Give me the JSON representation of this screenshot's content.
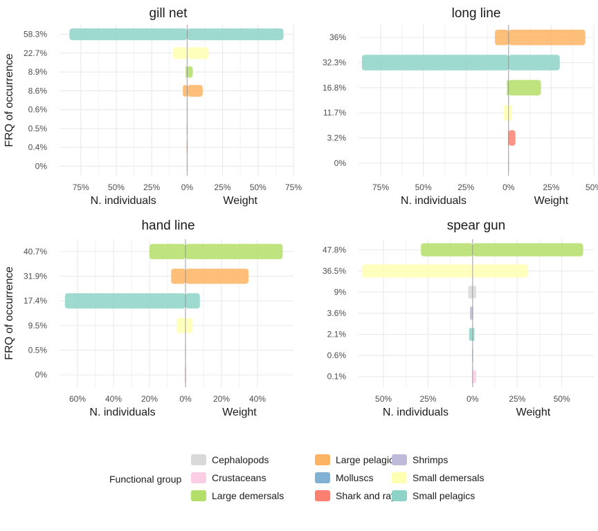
{
  "colors": {
    "Cephalopods": "#d9d9d9",
    "Crustaceans": "#fccde5",
    "Large demersals": "#b3de69",
    "Large pelagics": "#fdb462",
    "Molluscs": "#80b1d3",
    "Shark and rays": "#fb8072",
    "Shrimps": "#bebada",
    "Small demersals": "#ffffb3",
    "Small pelagics": "#8dd3c7"
  },
  "legend": {
    "title": "Functional group",
    "items": [
      "Cephalopods",
      "Crustaceans",
      "Large demersals",
      "Large pelagics",
      "Molluscs",
      "Shark and rays",
      "Shrimps",
      "Small demersals",
      "Small pelagics"
    ]
  },
  "chart_data": [
    {
      "type": "bar",
      "title": "gill net",
      "ylabel": "FRQ of occurrence",
      "xlabel_left": "N. individuals",
      "xlabel_right": "Weight",
      "xlim": [
        -0.9,
        0.75
      ],
      "xticks": [
        -0.75,
        -0.5,
        -0.25,
        0,
        0.25,
        0.5,
        0.75
      ],
      "xtick_labels": [
        "75%",
        "50%",
        "25%",
        "0%",
        "25%",
        "50%",
        "75%"
      ],
      "categories": [
        "58.3%",
        "22.7%",
        "8.9%",
        "8.6%",
        "0.6%",
        "0.5%",
        "0.4%",
        "0%"
      ],
      "series": [
        {
          "group": "Small pelagics",
          "category": "58.3%",
          "individuals": 0.83,
          "weight": 0.68
        },
        {
          "group": "Small demersals",
          "category": "22.7%",
          "individuals": 0.1,
          "weight": 0.15
        },
        {
          "group": "Large demersals",
          "category": "8.9%",
          "individuals": 0.01,
          "weight": 0.04
        },
        {
          "group": "Large pelagics",
          "category": "8.6%",
          "individuals": 0.03,
          "weight": 0.11
        },
        {
          "group": "Cephalopods",
          "category": "0.6%",
          "individuals": 0.002,
          "weight": 0.002
        },
        {
          "group": "Shrimps",
          "category": "0.5%",
          "individuals": 0.002,
          "weight": 0.002
        },
        {
          "group": "Shark and rays",
          "category": "0.4%",
          "individuals": 0.001,
          "weight": 0.002
        },
        {
          "group": "Crustaceans",
          "category": "0%",
          "individuals": 0.001,
          "weight": 0.001
        }
      ]
    },
    {
      "type": "bar",
      "title": "long line",
      "ylabel": "",
      "xlabel_left": "N. individuals",
      "xlabel_right": "Weight",
      "xlim": [
        -0.88,
        0.5
      ],
      "xticks": [
        -0.75,
        -0.5,
        -0.25,
        0,
        0.25,
        0.5
      ],
      "xtick_labels": [
        "75%",
        "50%",
        "25%",
        "0%",
        "25%",
        "50%"
      ],
      "categories": [
        "36%",
        "32.3%",
        "16.8%",
        "11.7%",
        "3.2%",
        "0%"
      ],
      "series": [
        {
          "group": "Large pelagics",
          "category": "36%",
          "individuals": 0.08,
          "weight": 0.45
        },
        {
          "group": "Small pelagics",
          "category": "32.3%",
          "individuals": 0.86,
          "weight": 0.3
        },
        {
          "group": "Large demersals",
          "category": "16.8%",
          "individuals": 0.01,
          "weight": 0.19
        },
        {
          "group": "Small demersals",
          "category": "11.7%",
          "individuals": 0.03,
          "weight": 0.02
        },
        {
          "group": "Shark and rays",
          "category": "3.2%",
          "individuals": 0.003,
          "weight": 0.04
        },
        {
          "group": "Cephalopods",
          "category": "0%",
          "individuals": 0.001,
          "weight": 0.001
        }
      ]
    },
    {
      "type": "bar",
      "title": "hand line",
      "ylabel": "FRQ of occurrence",
      "xlabel_left": "N. individuals",
      "xlabel_right": "Weight",
      "xlim": [
        -0.7,
        0.6
      ],
      "xticks": [
        -0.6,
        -0.4,
        -0.2,
        0,
        0.2,
        0.4
      ],
      "xtick_labels": [
        "60%",
        "40%",
        "20%",
        "0%",
        "20%",
        "40%"
      ],
      "categories": [
        "40.7%",
        "31.9%",
        "17.4%",
        "9.5%",
        "0.5%",
        "0%"
      ],
      "series": [
        {
          "group": "Large demersals",
          "category": "40.7%",
          "individuals": 0.2,
          "weight": 0.54
        },
        {
          "group": "Large pelagics",
          "category": "31.9%",
          "individuals": 0.08,
          "weight": 0.35
        },
        {
          "group": "Small pelagics",
          "category": "17.4%",
          "individuals": 0.67,
          "weight": 0.08
        },
        {
          "group": "Small demersals",
          "category": "9.5%",
          "individuals": 0.05,
          "weight": 0.04
        },
        {
          "group": "Cephalopods",
          "category": "0.5%",
          "individuals": 0.002,
          "weight": 0.002
        },
        {
          "group": "Shark and rays",
          "category": "0%",
          "individuals": 0.001,
          "weight": 0.002
        }
      ]
    },
    {
      "type": "bar",
      "title": "spear gun",
      "ylabel": "",
      "xlabel_left": "N. individuals",
      "xlabel_right": "Weight",
      "xlim": [
        -0.64,
        0.68
      ],
      "xticks": [
        -0.5,
        -0.25,
        0,
        0.25,
        0.5
      ],
      "xtick_labels": [
        "50%",
        "25%",
        "0%",
        "25%",
        "50%"
      ],
      "categories": [
        "47.8%",
        "36.5%",
        "9%",
        "3.6%",
        "2.1%",
        "0.6%",
        "0.1%"
      ],
      "series": [
        {
          "group": "Large demersals",
          "category": "47.8%",
          "individuals": 0.29,
          "weight": 0.62
        },
        {
          "group": "Small demersals",
          "category": "36.5%",
          "individuals": 0.62,
          "weight": 0.31
        },
        {
          "group": "Cephalopods",
          "category": "9%",
          "individuals": 0.025,
          "weight": 0.02
        },
        {
          "group": "Shrimps",
          "category": "3.6%",
          "individuals": 0.015,
          "weight": 0.003
        },
        {
          "group": "Small pelagics",
          "category": "2.1%",
          "individuals": 0.02,
          "weight": 0.01
        },
        {
          "group": "Molluscs",
          "category": "0.6%",
          "individuals": 0.001,
          "weight": 0.001
        },
        {
          "group": "Crustaceans",
          "category": "0.1%",
          "individuals": 0.004,
          "weight": 0.02
        }
      ]
    }
  ]
}
